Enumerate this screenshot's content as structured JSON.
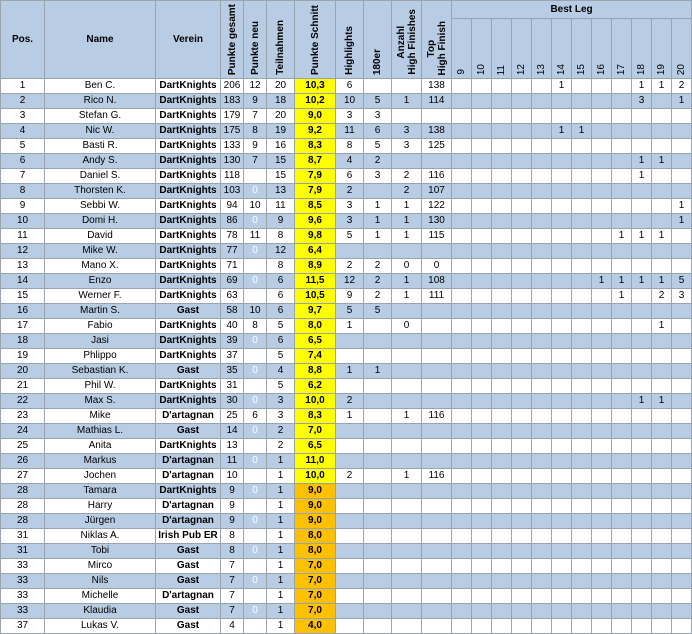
{
  "table": {
    "headers": [
      "Pos.",
      "Name",
      "Verein",
      "Punkte gesamt",
      "Punkte neu",
      "Teilnahmen",
      "Punkte Schnitt",
      "Highlights",
      "180er",
      [
        "Anzahl",
        "High Finishes"
      ],
      [
        "Top",
        "High Finish"
      ]
    ],
    "best_leg_label": "Best Leg",
    "best_leg_columns": [
      9,
      10,
      11,
      12,
      13,
      14,
      15,
      16,
      17,
      18,
      19,
      20
    ],
    "rows": [
      [
        1,
        "Ben C.",
        "DartKnights",
        206,
        12,
        20,
        "10,3",
        6,
        null,
        null,
        138,
        null,
        null,
        null,
        null,
        null,
        1,
        null,
        null,
        null,
        1,
        1,
        2
      ],
      [
        2,
        "Rico N.",
        "DartKnights",
        183,
        9,
        18,
        "10,2",
        10,
        5,
        1,
        114,
        null,
        null,
        null,
        null,
        null,
        null,
        null,
        null,
        null,
        3,
        null,
        1
      ],
      [
        3,
        "Stefan G.",
        "DartKnights",
        179,
        7,
        20,
        "9,0",
        3,
        3,
        null,
        null,
        null,
        null,
        null,
        null,
        null,
        null,
        null,
        null,
        null,
        null,
        null,
        null
      ],
      [
        4,
        "Nic W.",
        "DartKnights",
        175,
        8,
        19,
        "9,2",
        11,
        6,
        3,
        138,
        null,
        null,
        null,
        null,
        null,
        1,
        1,
        null,
        null,
        null,
        null,
        null
      ],
      [
        5,
        "Basti R.",
        "DartKnights",
        133,
        9,
        16,
        "8,3",
        8,
        5,
        3,
        125,
        null,
        null,
        null,
        null,
        null,
        null,
        null,
        null,
        null,
        null,
        null,
        null
      ],
      [
        6,
        "Andy S.",
        "DartKnights",
        130,
        7,
        15,
        "8,7",
        4,
        2,
        null,
        null,
        null,
        null,
        null,
        null,
        null,
        null,
        null,
        null,
        null,
        1,
        1,
        null
      ],
      [
        7,
        "Daniel S.",
        "DartKnights",
        118,
        null,
        15,
        "7,9",
        6,
        3,
        2,
        116,
        null,
        null,
        null,
        null,
        null,
        null,
        null,
        null,
        null,
        1,
        null,
        null
      ],
      [
        8,
        "Thorsten K.",
        "DartKnights",
        103,
        0,
        13,
        "7,9",
        2,
        null,
        2,
        107,
        null,
        null,
        null,
        null,
        null,
        null,
        null,
        null,
        null,
        null,
        null,
        null
      ],
      [
        9,
        "Sebbi W.",
        "DartKnights",
        94,
        10,
        11,
        "8,5",
        3,
        1,
        1,
        122,
        null,
        null,
        null,
        null,
        null,
        null,
        null,
        null,
        null,
        null,
        null,
        1
      ],
      [
        10,
        "Domi H.",
        "DartKnights",
        86,
        0,
        9,
        "9,6",
        3,
        1,
        1,
        130,
        null,
        null,
        null,
        null,
        null,
        null,
        null,
        null,
        null,
        null,
        null,
        1
      ],
      [
        11,
        "David",
        "DartKnights",
        78,
        11,
        8,
        "9,8",
        5,
        1,
        1,
        115,
        null,
        null,
        null,
        null,
        null,
        null,
        null,
        null,
        1,
        1,
        1,
        null
      ],
      [
        12,
        "Mike W.",
        "DartKnights",
        77,
        0,
        12,
        "6,4",
        null,
        null,
        null,
        null,
        null,
        null,
        null,
        null,
        null,
        null,
        null,
        null,
        null,
        null,
        null,
        null
      ],
      [
        13,
        "Mano X.",
        "DartKnights",
        71,
        null,
        8,
        "8,9",
        2,
        2,
        0,
        0,
        null,
        null,
        null,
        null,
        null,
        null,
        null,
        null,
        null,
        null,
        null,
        null
      ],
      [
        14,
        "Enzo",
        "DartKnights",
        69,
        0,
        6,
        "11,5",
        12,
        2,
        1,
        108,
        null,
        null,
        null,
        null,
        null,
        null,
        null,
        1,
        1,
        1,
        1,
        5
      ],
      [
        15,
        "Werner F.",
        "DartKnights",
        63,
        null,
        6,
        "10,5",
        9,
        2,
        1,
        111,
        null,
        null,
        null,
        null,
        null,
        null,
        null,
        null,
        1,
        null,
        2,
        3
      ],
      [
        16,
        "Martin S.",
        "Gast",
        58,
        10,
        6,
        "9,7",
        5,
        5,
        null,
        null,
        null,
        null,
        null,
        null,
        null,
        null,
        null,
        null,
        null,
        null,
        null,
        null
      ],
      [
        17,
        "Fabio",
        "DartKnights",
        40,
        8,
        5,
        "8,0",
        1,
        null,
        0,
        null,
        null,
        null,
        null,
        null,
        null,
        null,
        null,
        null,
        null,
        null,
        1,
        null
      ],
      [
        18,
        "Jasi",
        "DartKnights",
        39,
        0,
        6,
        "6,5",
        null,
        null,
        null,
        null,
        null,
        null,
        null,
        null,
        null,
        null,
        null,
        null,
        null,
        null,
        null,
        null
      ],
      [
        19,
        "Phlippo",
        "DartKnights",
        37,
        null,
        5,
        "7,4",
        null,
        null,
        null,
        null,
        null,
        null,
        null,
        null,
        null,
        null,
        null,
        null,
        null,
        null,
        null,
        null
      ],
      [
        20,
        "Sebastian K.",
        "Gast",
        35,
        0,
        4,
        "8,8",
        1,
        1,
        null,
        null,
        null,
        null,
        null,
        null,
        null,
        null,
        null,
        null,
        null,
        null,
        null,
        null
      ],
      [
        21,
        "Phil W.",
        "DartKnights",
        31,
        null,
        5,
        "6,2",
        null,
        null,
        null,
        null,
        null,
        null,
        null,
        null,
        null,
        null,
        null,
        null,
        null,
        null,
        null,
        null
      ],
      [
        22,
        "Max S.",
        "DartKnights",
        30,
        0,
        3,
        "10,0",
        2,
        null,
        null,
        null,
        null,
        null,
        null,
        null,
        null,
        null,
        null,
        null,
        null,
        1,
        1,
        null
      ],
      [
        23,
        "Mike",
        "D'artagnan",
        25,
        6,
        3,
        "8,3",
        1,
        null,
        1,
        116,
        null,
        null,
        null,
        null,
        null,
        null,
        null,
        null,
        null,
        null,
        null,
        null
      ],
      [
        24,
        "Mathias L.",
        "Gast",
        14,
        0,
        2,
        "7,0",
        null,
        null,
        null,
        null,
        null,
        null,
        null,
        null,
        null,
        null,
        null,
        null,
        null,
        null,
        null,
        null
      ],
      [
        25,
        "Anita",
        "DartKnights",
        13,
        null,
        2,
        "6,5",
        null,
        null,
        null,
        null,
        null,
        null,
        null,
        null,
        null,
        null,
        null,
        null,
        null,
        null,
        null,
        null
      ],
      [
        26,
        "Markus",
        "D'artagnan",
        11,
        0,
        1,
        "11,0",
        null,
        null,
        null,
        null,
        null,
        null,
        null,
        null,
        null,
        null,
        null,
        null,
        null,
        null,
        null,
        null
      ],
      [
        27,
        "Jochen",
        "D'artagnan",
        10,
        null,
        1,
        "10,0",
        2,
        null,
        1,
        116,
        null,
        null,
        null,
        null,
        null,
        null,
        null,
        null,
        null,
        null,
        null,
        null
      ],
      [
        28,
        "Tamara",
        "DartKnights",
        9,
        0,
        1,
        "9,0",
        null,
        null,
        null,
        null,
        null,
        null,
        null,
        null,
        null,
        null,
        null,
        null,
        null,
        null,
        null,
        null
      ],
      [
        28,
        "Harry",
        "D'artagnan",
        9,
        null,
        1,
        "9,0",
        null,
        null,
        null,
        null,
        null,
        null,
        null,
        null,
        null,
        null,
        null,
        null,
        null,
        null,
        null,
        null
      ],
      [
        28,
        "Jürgen",
        "D'artagnan",
        9,
        0,
        1,
        "9,0",
        null,
        null,
        null,
        null,
        null,
        null,
        null,
        null,
        null,
        null,
        null,
        null,
        null,
        null,
        null,
        null
      ],
      [
        31,
        "Niklas A.",
        "Irish Pub ER",
        8,
        null,
        1,
        "8,0",
        null,
        null,
        null,
        null,
        null,
        null,
        null,
        null,
        null,
        null,
        null,
        null,
        null,
        null,
        null,
        null
      ],
      [
        31,
        "Tobi",
        "Gast",
        8,
        0,
        1,
        "8,0",
        null,
        null,
        null,
        null,
        null,
        null,
        null,
        null,
        null,
        null,
        null,
        null,
        null,
        null,
        null,
        null
      ],
      [
        33,
        "Mirco",
        "Gast",
        7,
        null,
        1,
        "7,0",
        null,
        null,
        null,
        null,
        null,
        null,
        null,
        null,
        null,
        null,
        null,
        null,
        null,
        null,
        null,
        null
      ],
      [
        33,
        "Nils",
        "Gast",
        7,
        0,
        1,
        "7,0",
        null,
        null,
        null,
        null,
        null,
        null,
        null,
        null,
        null,
        null,
        null,
        null,
        null,
        null,
        null,
        null
      ],
      [
        33,
        "Michelle",
        "D'artagnan",
        7,
        null,
        1,
        "7,0",
        null,
        null,
        null,
        null,
        null,
        null,
        null,
        null,
        null,
        null,
        null,
        null,
        null,
        null,
        null,
        null
      ],
      [
        33,
        "Klaudia",
        "Gast",
        7,
        0,
        1,
        "7,0",
        null,
        null,
        null,
        null,
        null,
        null,
        null,
        null,
        null,
        null,
        null,
        null,
        null,
        null,
        null,
        null
      ],
      [
        37,
        "Lukas V.",
        "Gast",
        4,
        null,
        1,
        "4,0",
        null,
        null,
        null,
        null,
        null,
        null,
        null,
        null,
        null,
        null,
        null,
        null,
        null,
        null,
        null,
        null
      ]
    ]
  }
}
